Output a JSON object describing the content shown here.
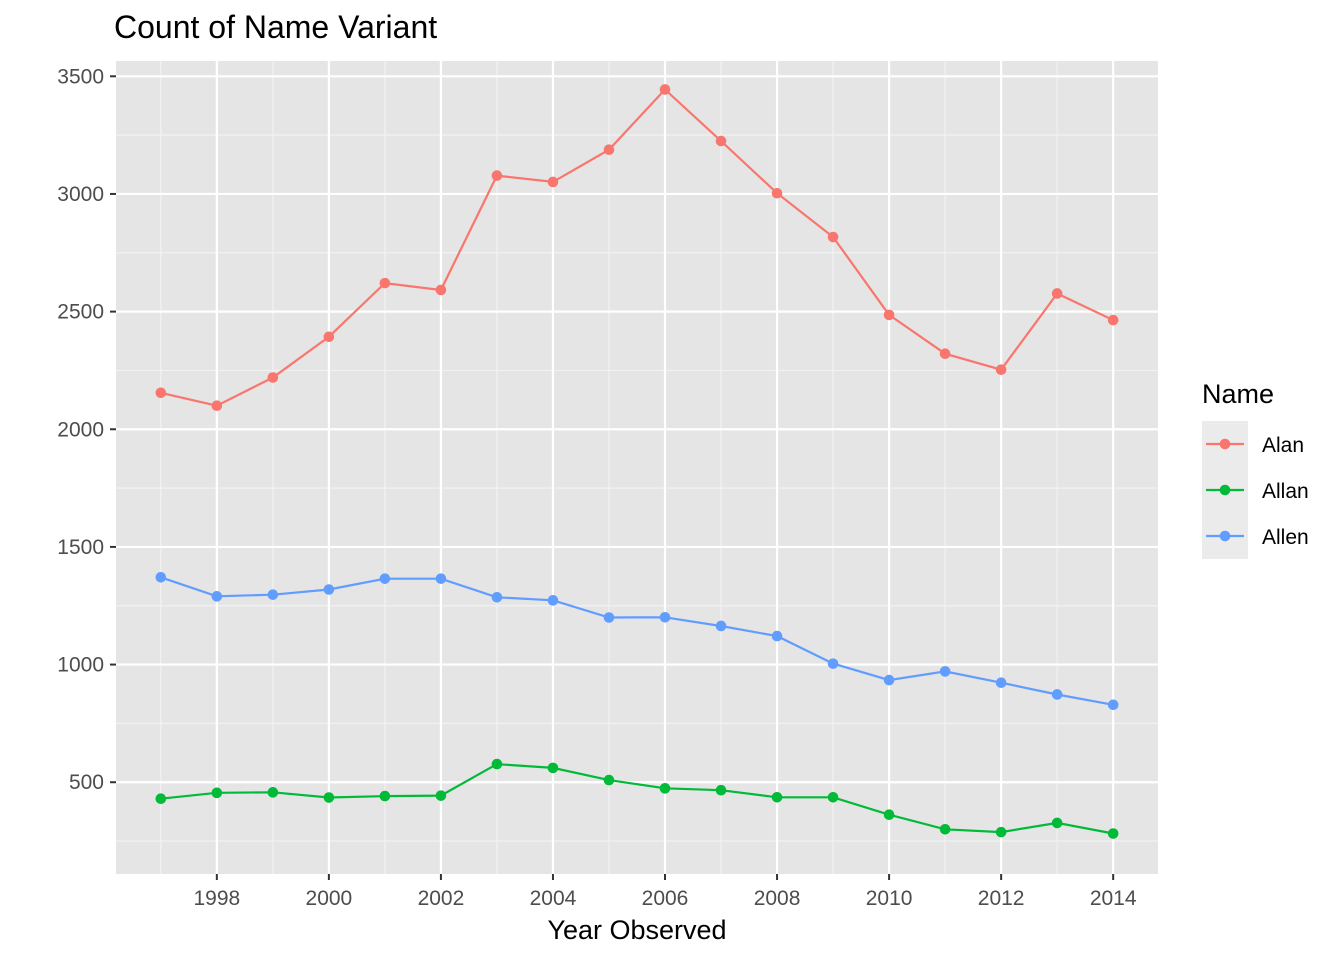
{
  "chart_data": {
    "type": "line",
    "title": "Count of Name Variant",
    "xlabel": "Year Observed",
    "ylabel": "",
    "x": [
      1997,
      1998,
      1999,
      2000,
      2001,
      2002,
      2003,
      2004,
      2005,
      2006,
      2007,
      2008,
      2009,
      2010,
      2011,
      2012,
      2013,
      2014
    ],
    "xlim": [
      1996.2,
      2014.8
    ],
    "ylim": [
      110,
      3565
    ],
    "x_ticks": [
      1998,
      2000,
      2002,
      2004,
      2006,
      2008,
      2010,
      2012,
      2014
    ],
    "y_ticks": [
      500,
      1000,
      1500,
      2000,
      2500,
      3000,
      3500
    ],
    "grid": true,
    "panel_background": "#e5e5e5",
    "legend": {
      "title": "Name",
      "position": "right"
    },
    "series": [
      {
        "name": "Alan",
        "color": "#F8766D",
        "values": [
          2155,
          2100,
          2220,
          2393,
          2621,
          2592,
          3078,
          3051,
          3188,
          3444,
          3225,
          3003,
          2817,
          2486,
          2321,
          2253,
          2577,
          2464
        ]
      },
      {
        "name": "Allan",
        "color": "#00BA38",
        "values": [
          430,
          455,
          457,
          435,
          441,
          443,
          577,
          561,
          509,
          474,
          466,
          436,
          436,
          362,
          300,
          288,
          327,
          282
        ]
      },
      {
        "name": "Allen",
        "color": "#619CFF",
        "values": [
          1371,
          1290,
          1297,
          1319,
          1365,
          1365,
          1286,
          1273,
          1200,
          1201,
          1164,
          1121,
          1004,
          934,
          971,
          923,
          873,
          829
        ]
      }
    ]
  }
}
